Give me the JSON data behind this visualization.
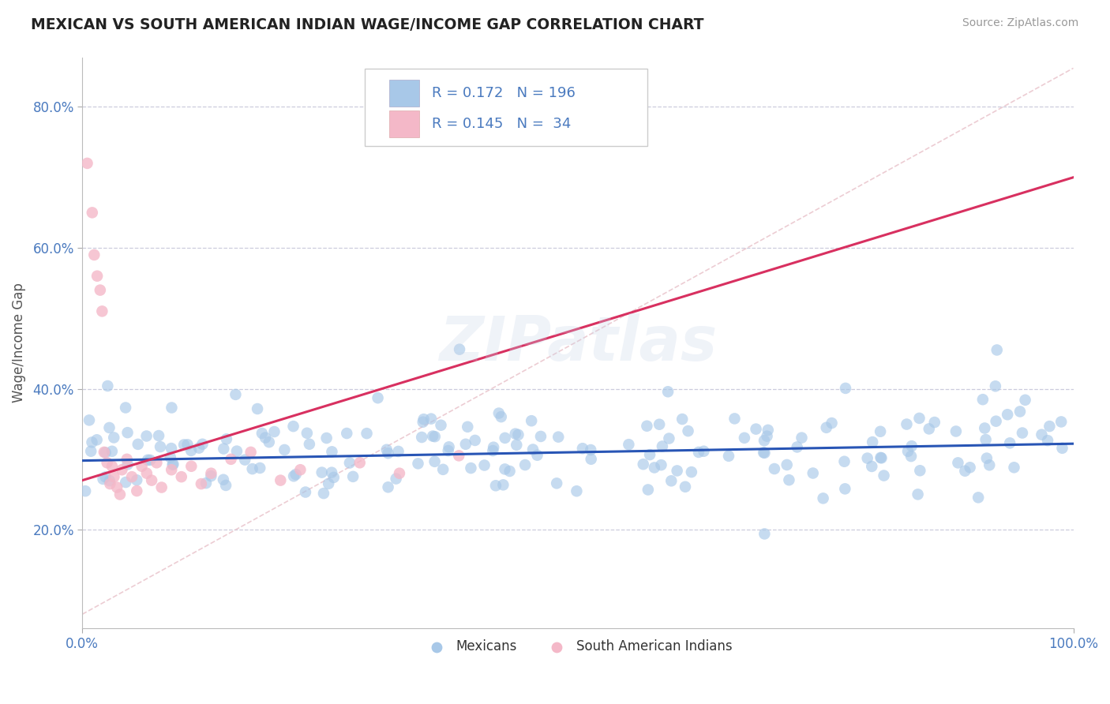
{
  "title": "MEXICAN VS SOUTH AMERICAN INDIAN WAGE/INCOME GAP CORRELATION CHART",
  "source": "Source: ZipAtlas.com",
  "ylabel": "Wage/Income Gap",
  "xlim": [
    0.0,
    1.0
  ],
  "ylim": [
    0.06,
    0.87
  ],
  "yticks": [
    0.2,
    0.4,
    0.6,
    0.8
  ],
  "xticks": [
    0.0,
    1.0
  ],
  "xtick_labels": [
    "0.0%",
    "100.0%"
  ],
  "ytick_labels": [
    "20.0%",
    "40.0%",
    "60.0%",
    "80.0%"
  ],
  "mexicans_color": "#a8c8e8",
  "south_american_color": "#f4b8c8",
  "mexicans_line_color": "#2855b5",
  "south_american_line_color": "#d83060",
  "diagonal_line_color": "#e8c0c8",
  "R_mexicans": 0.172,
  "N_mexicans": 196,
  "R_south_american": 0.145,
  "N_south_american": 34,
  "legend_label_mexicans": "Mexicans",
  "legend_label_south_american": "South American Indians",
  "background_color": "#ffffff",
  "grid_color": "#ccccdd",
  "watermark_text": "ZIPatlas",
  "title_color": "#222222",
  "source_color": "#999999",
  "tick_color": "#4a7abf",
  "ylabel_color": "#555555"
}
